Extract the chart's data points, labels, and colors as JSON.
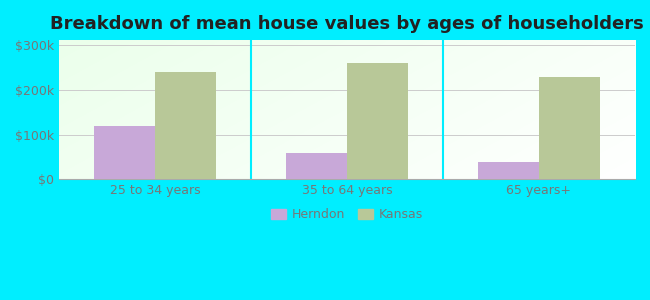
{
  "title": "Breakdown of mean house values by ages of householders",
  "categories": [
    "25 to 34 years",
    "35 to 64 years",
    "65 years+"
  ],
  "herndon_values": [
    120000,
    58000,
    38000
  ],
  "kansas_values": [
    238000,
    258000,
    228000
  ],
  "herndon_color": "#c8a8d8",
  "kansas_color": "#b8c898",
  "background_color": "#00eeff",
  "yticks": [
    0,
    100000,
    200000,
    300000
  ],
  "ylim": [
    0,
    310000
  ],
  "ylabel_labels": [
    "$0",
    "$100k",
    "$200k",
    "$300k"
  ],
  "legend_labels": [
    "Herndon",
    "Kansas"
  ],
  "bar_width": 0.32,
  "title_fontsize": 13,
  "tick_fontsize": 9,
  "legend_fontsize": 9,
  "tick_color": "#777777",
  "title_color": "#222222"
}
